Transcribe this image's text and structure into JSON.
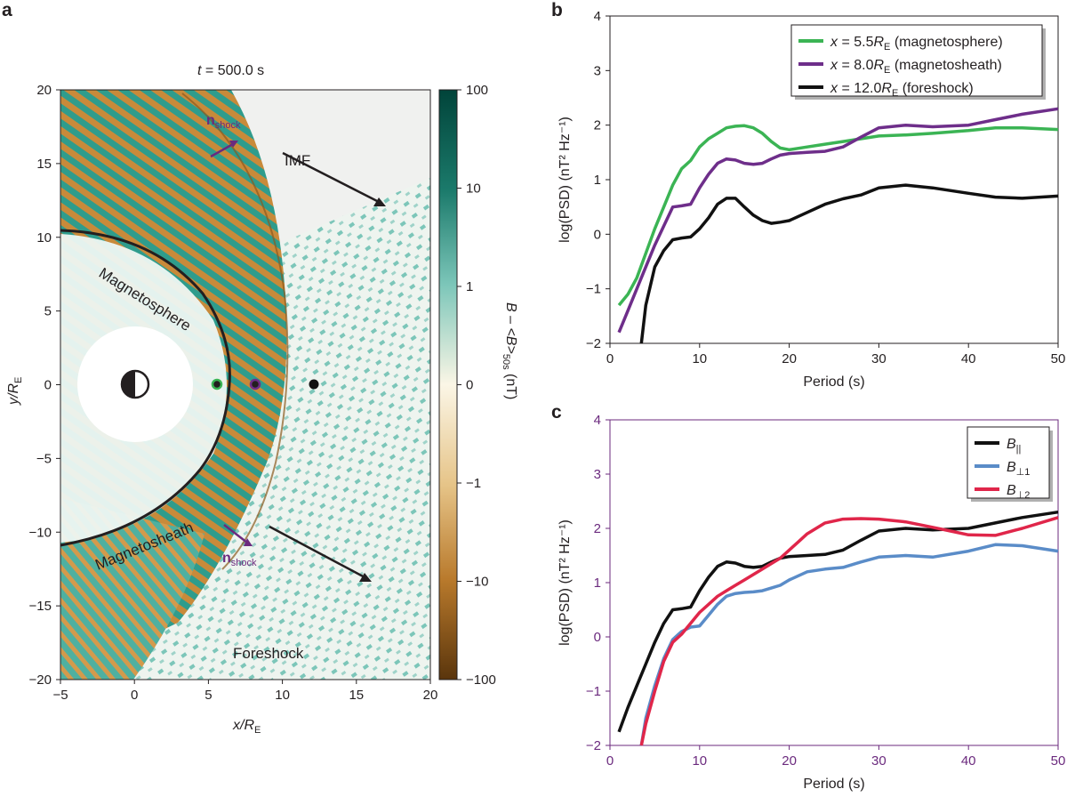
{
  "panel_a": {
    "letter": "a",
    "title_t": "t",
    "title_rest": " = 500.0 s",
    "xlabel_main": "x/R",
    "xlabel_sub": "E",
    "ylabel_main": "y/R",
    "ylabel_sub": "E",
    "xticks": [
      "-5",
      "0",
      "5",
      "10",
      "15",
      "20"
    ],
    "yticks": [
      "20",
      "15",
      "10",
      "5",
      "0",
      "-5",
      "-10",
      "-15",
      "-20"
    ],
    "colorbar_ticks": [
      "100",
      "10",
      "1",
      "0",
      "-1",
      "-10",
      "-100"
    ],
    "colorbar_label": "B – <B>",
    "colorbar_label_sub": "50s",
    "colorbar_label_unit": " (nT)",
    "labels": {
      "magnetosphere": "Magnetosphere",
      "magnetosheath": "Magnetosheath",
      "foreshock": "Foreshock",
      "imf": "IMF",
      "nshock_main": "n",
      "nshock_sub": "shock"
    },
    "colors": {
      "positive": "#0d5c4f",
      "negative": "#7a4a14",
      "teal": "#2f9c8c",
      "brown": "#c88a3a",
      "purple": "#6b2a7e"
    }
  },
  "chart_data": [
    {
      "type": "line",
      "panel": "b",
      "xlabel": "Period (s)",
      "ylabel": "log(PSD) (nT² Hz⁻¹)",
      "xlim": [
        0,
        50
      ],
      "ylim": [
        -2,
        4
      ],
      "xticks": [
        "0",
        "10",
        "20",
        "30",
        "40",
        "50"
      ],
      "yticks": [
        "4",
        "3",
        "2",
        "1",
        "0",
        "-1",
        "-2"
      ],
      "legend_position": "top-right",
      "series": [
        {
          "name": "x = 5.5R_E (magnetosphere)",
          "color": "#3bb454",
          "x": [
            1,
            2,
            3,
            4,
            5,
            6,
            7,
            8,
            9,
            10,
            11,
            12,
            13,
            14,
            15,
            16,
            17,
            18,
            19,
            20,
            22,
            24,
            26,
            28,
            30,
            33,
            36,
            40,
            43,
            46,
            50
          ],
          "y": [
            -1.3,
            -1.1,
            -0.8,
            -0.35,
            0.1,
            0.5,
            0.9,
            1.2,
            1.35,
            1.6,
            1.75,
            1.85,
            1.95,
            1.98,
            1.99,
            1.95,
            1.85,
            1.7,
            1.58,
            1.55,
            1.6,
            1.65,
            1.7,
            1.75,
            1.8,
            1.82,
            1.85,
            1.9,
            1.95,
            1.95,
            1.92
          ]
        },
        {
          "name": "x = 8.0R_E (magnetosheath)",
          "color": "#6e2e8a",
          "x": [
            1,
            2,
            3,
            4,
            5,
            6,
            7,
            8,
            9,
            10,
            11,
            12,
            13,
            14,
            15,
            16,
            17,
            18,
            19,
            20,
            22,
            24,
            26,
            28,
            30,
            33,
            36,
            40,
            43,
            46,
            50
          ],
          "y": [
            -1.8,
            -1.4,
            -1.0,
            -0.6,
            -0.2,
            0.15,
            0.5,
            0.52,
            0.55,
            0.85,
            1.1,
            1.3,
            1.38,
            1.36,
            1.3,
            1.28,
            1.3,
            1.38,
            1.45,
            1.48,
            1.5,
            1.52,
            1.6,
            1.78,
            1.95,
            2.0,
            1.97,
            2.0,
            2.1,
            2.2,
            2.3
          ]
        },
        {
          "name": "x = 12.0R_E (foreshock)",
          "color": "#111111",
          "x": [
            3.5,
            4,
            5,
            6,
            7,
            8,
            9,
            10,
            11,
            12,
            13,
            14,
            15,
            16,
            17,
            18,
            19,
            20,
            22,
            24,
            26,
            28,
            30,
            33,
            36,
            40,
            43,
            46,
            50
          ],
          "y": [
            -2.0,
            -1.3,
            -0.6,
            -0.3,
            -0.1,
            -0.07,
            -0.05,
            0.1,
            0.3,
            0.55,
            0.66,
            0.66,
            0.5,
            0.35,
            0.25,
            0.2,
            0.22,
            0.25,
            0.4,
            0.55,
            0.65,
            0.72,
            0.85,
            0.9,
            0.85,
            0.75,
            0.68,
            0.66,
            0.7
          ]
        }
      ]
    },
    {
      "type": "line",
      "panel": "c",
      "xlabel": "Period (s)",
      "ylabel": "log(PSD) (nT² Hz⁻¹)",
      "xlim": [
        0,
        50
      ],
      "ylim": [
        -2,
        4
      ],
      "xticks": [
        "0",
        "10",
        "20",
        "30",
        "40",
        "50"
      ],
      "yticks": [
        "4",
        "3",
        "2",
        "1",
        "0",
        "-1",
        "-2"
      ],
      "legend_position": "top-right",
      "series": [
        {
          "name": "B_||",
          "color": "#111111",
          "x": [
            1,
            2,
            3,
            4,
            5,
            6,
            7,
            8,
            9,
            10,
            11,
            12,
            13,
            14,
            15,
            16,
            17,
            18,
            19,
            20,
            22,
            24,
            26,
            28,
            30,
            33,
            36,
            40,
            43,
            46,
            50
          ],
          "y": [
            -1.75,
            -1.3,
            -0.9,
            -0.5,
            -0.1,
            0.25,
            0.5,
            0.52,
            0.55,
            0.85,
            1.1,
            1.3,
            1.38,
            1.36,
            1.3,
            1.28,
            1.3,
            1.38,
            1.45,
            1.48,
            1.5,
            1.52,
            1.6,
            1.78,
            1.95,
            2.0,
            1.97,
            2.0,
            2.1,
            2.2,
            2.3
          ]
        },
        {
          "name": "B_⊥1",
          "color": "#5a8cc8",
          "x": [
            3.5,
            4,
            5,
            6,
            7,
            8,
            9,
            10,
            11,
            12,
            13,
            14,
            15,
            16,
            17,
            18,
            19,
            20,
            22,
            24,
            26,
            28,
            30,
            33,
            36,
            40,
            43,
            46,
            50
          ],
          "y": [
            -2.0,
            -1.5,
            -0.9,
            -0.4,
            -0.05,
            0.1,
            0.18,
            0.2,
            0.4,
            0.6,
            0.75,
            0.8,
            0.82,
            0.83,
            0.85,
            0.9,
            0.95,
            1.05,
            1.2,
            1.25,
            1.28,
            1.38,
            1.47,
            1.5,
            1.47,
            1.58,
            1.7,
            1.68,
            1.58
          ]
        },
        {
          "name": "B_⊥2",
          "color": "#e0264a",
          "x": [
            3.5,
            4,
            5,
            6,
            7,
            8,
            9,
            10,
            11,
            12,
            13,
            14,
            15,
            16,
            17,
            18,
            19,
            20,
            21,
            22,
            24,
            26,
            28,
            30,
            33,
            36,
            38,
            40,
            43,
            46,
            50
          ],
          "y": [
            -2.0,
            -1.6,
            -1.0,
            -0.45,
            -0.1,
            0.05,
            0.25,
            0.45,
            0.6,
            0.75,
            0.85,
            0.95,
            1.05,
            1.15,
            1.25,
            1.35,
            1.45,
            1.6,
            1.75,
            1.9,
            2.1,
            2.17,
            2.18,
            2.17,
            2.12,
            2.02,
            1.95,
            1.88,
            1.87,
            2.0,
            2.2
          ]
        }
      ]
    }
  ]
}
